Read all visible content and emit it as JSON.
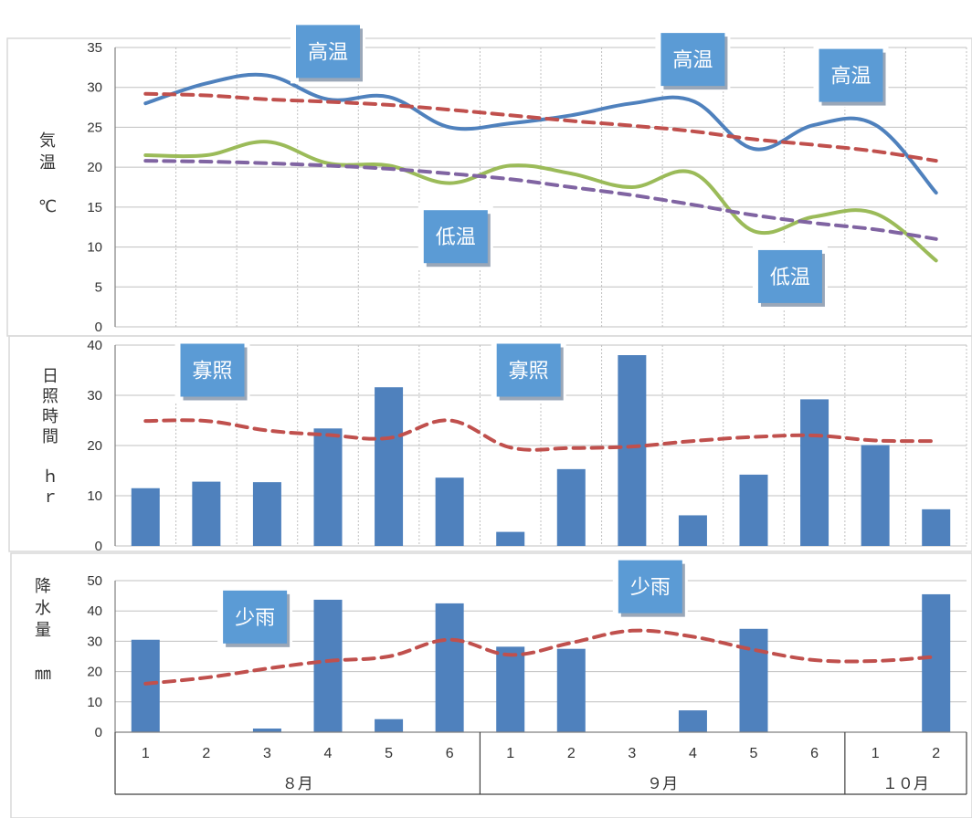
{
  "chart_data": [
    {
      "type": "line",
      "title": "",
      "ylabel": "気温　℃",
      "ylim": [
        0,
        35
      ],
      "yticks": [
        0,
        5,
        10,
        15,
        20,
        25,
        30,
        35
      ],
      "grid": true,
      "x": [
        1,
        2,
        3,
        4,
        5,
        6,
        7,
        8,
        9,
        10,
        11,
        12,
        13,
        14
      ],
      "series": [
        {
          "name": "",
          "style": "solid",
          "color": "#4f81bd",
          "values": [
            28,
            30.5,
            31.5,
            28.5,
            28.8,
            25,
            25.5,
            26.5,
            28,
            28.3,
            22.3,
            25.3,
            25.3,
            16.8
          ]
        },
        {
          "name": "",
          "style": "dashed",
          "color": "#c0504d",
          "values": [
            29.2,
            29,
            28.5,
            28.2,
            27.8,
            27.2,
            26.5,
            25.8,
            25.2,
            24.5,
            23.5,
            22.8,
            22,
            20.8
          ]
        },
        {
          "name": "",
          "style": "solid",
          "color": "#9bbb59",
          "values": [
            21.5,
            21.5,
            23.2,
            20.5,
            20.2,
            18,
            20.2,
            19.2,
            17.5,
            19.3,
            12,
            13.8,
            14.2,
            8.3
          ]
        },
        {
          "name": "",
          "style": "dashed",
          "color": "#8064a2",
          "values": [
            20.8,
            20.7,
            20.5,
            20.2,
            19.8,
            19.2,
            18.5,
            17.5,
            16.5,
            15.3,
            14,
            13,
            12.2,
            11
          ]
        }
      ],
      "annotations": [
        {
          "text": "高温",
          "anchor_x": 4,
          "anchor_y": 34.5
        },
        {
          "text": "高温",
          "anchor_x": 10,
          "anchor_y": 33.5
        },
        {
          "text": "高温",
          "anchor_x": 12.6,
          "anchor_y": 31.5
        },
        {
          "text": "低温",
          "anchor_x": 6.1,
          "anchor_y": 11.3
        },
        {
          "text": "低温",
          "anchor_x": 11.6,
          "anchor_y": 6.3
        }
      ]
    },
    {
      "type": "bar",
      "title": "",
      "ylabel": "日照時間　ｈｒ",
      "ylim": [
        0,
        40
      ],
      "yticks": [
        0,
        10,
        20,
        30,
        40
      ],
      "grid": true,
      "x": [
        1,
        2,
        3,
        4,
        5,
        6,
        7,
        8,
        9,
        10,
        11,
        12,
        13,
        14
      ],
      "series": [
        {
          "name": "",
          "type": "bar",
          "color": "#4f81bd",
          "values": [
            11.5,
            12.8,
            12.7,
            23.4,
            31.6,
            13.6,
            2.8,
            15.3,
            38,
            6.1,
            14.2,
            29.2,
            20.1,
            7.3
          ]
        },
        {
          "name": "",
          "type": "line",
          "style": "dashed",
          "color": "#c0504d",
          "values": [
            24.9,
            24.9,
            23,
            22.1,
            21.5,
            25,
            19.6,
            19.5,
            19.8,
            20.9,
            21.7,
            22,
            21,
            20.9
          ]
        }
      ],
      "annotations": [
        {
          "text": "寡照",
          "anchor_x": 2.1,
          "anchor_y": 35
        },
        {
          "text": "寡照",
          "anchor_x": 7.3,
          "anchor_y": 35
        }
      ]
    },
    {
      "type": "bar",
      "title": "",
      "ylabel": "降水量　㎜",
      "ylim": [
        0,
        50
      ],
      "yticks": [
        0,
        10,
        20,
        30,
        40,
        50
      ],
      "grid": true,
      "x": [
        1,
        2,
        3,
        4,
        5,
        6,
        7,
        8,
        9,
        10,
        11,
        12,
        13,
        14
      ],
      "series": [
        {
          "name": "",
          "type": "bar",
          "color": "#4f81bd",
          "values": [
            30.5,
            0,
            1.2,
            43.7,
            4.3,
            42.5,
            28.2,
            27.5,
            0,
            7.2,
            34.1,
            0,
            0,
            45.5
          ]
        },
        {
          "name": "",
          "type": "line",
          "style": "dashed",
          "color": "#c0504d",
          "values": [
            16,
            18,
            21,
            23.5,
            25,
            30.5,
            25.5,
            29.5,
            33.5,
            31.5,
            27.2,
            23.8,
            23.5,
            24.9
          ]
        }
      ],
      "annotations": [
        {
          "text": "少雨",
          "anchor_x": 2.8,
          "anchor_y": 38
        },
        {
          "text": "少雨",
          "anchor_x": 9.3,
          "anchor_y": 48
        }
      ]
    }
  ],
  "x_axis": {
    "tick_labels": [
      "1",
      "2",
      "3",
      "4",
      "5",
      "6",
      "1",
      "2",
      "3",
      "4",
      "5",
      "6",
      "1",
      "2"
    ],
    "months": [
      {
        "label": "８月",
        "start": 1,
        "end": 6
      },
      {
        "label": "９月",
        "start": 7,
        "end": 12
      },
      {
        "label": "１０月",
        "start": 13,
        "end": 14
      }
    ]
  },
  "colors": {
    "bar": "#4f81bd",
    "annotation_fill": "#5b9bd5",
    "grid": "#c0c0c0"
  }
}
